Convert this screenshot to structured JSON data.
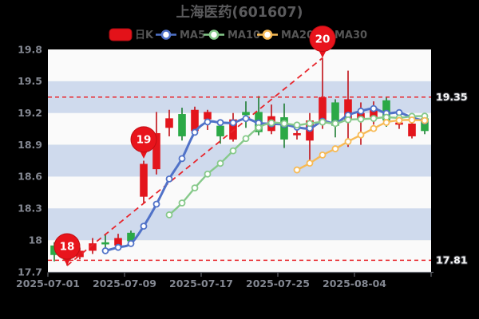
{
  "title": "上海医药(601607)",
  "legend": {
    "items": [
      {
        "label": "日K",
        "type": "kbar",
        "color": "#e31219"
      },
      {
        "label": "MA5",
        "type": "ma",
        "color": "#5072c8"
      },
      {
        "label": "MA10",
        "type": "ma",
        "color": "#86c98a"
      },
      {
        "label": "MA20",
        "type": "ma",
        "color": "#f7ba55"
      },
      {
        "label": "MA30",
        "type": "ma",
        "color": "#f0908f"
      }
    ]
  },
  "colors": {
    "background": "#000000",
    "stripe_light": "#fafafa",
    "stripe_blue": "#cfdaed",
    "up_body": "#e3151c",
    "up_wick": "#c11017",
    "down_body": "#2ba946",
    "down_wick": "#1d7c33",
    "dashed_line": "#e8262c",
    "badge": "#e8141c",
    "axis": "#63666d",
    "tick_label": "#848892",
    "title_text": "#5a5a5c",
    "legend_text": "#565656",
    "markline_label_fill": "#f8f8f8",
    "markline_label_stroke": "#36383d"
  },
  "chart_data": {
    "type": "candlestick",
    "title": "上海医药(601607)",
    "ohlc_columns": [
      "open",
      "close",
      "low",
      "high"
    ],
    "dates": [
      "2025-07-01",
      "2025-07-02",
      "2025-07-03",
      "2025-07-04",
      "2025-07-07",
      "2025-07-08",
      "2025-07-09",
      "2025-07-10",
      "2025-07-11",
      "2025-07-14",
      "2025-07-15",
      "2025-07-16",
      "2025-07-17",
      "2025-07-18",
      "2025-07-21",
      "2025-07-22",
      "2025-07-23",
      "2025-07-24",
      "2025-07-25",
      "2025-07-28",
      "2025-07-29",
      "2025-07-30",
      "2025-07-31",
      "2025-08-01",
      "2025-08-04",
      "2025-08-05",
      "2025-08-06",
      "2025-08-07",
      "2025-08-08",
      "2025-08-11"
    ],
    "ohlc": [
      [
        17.95,
        17.86,
        17.8,
        17.98
      ],
      [
        17.86,
        17.81,
        17.76,
        17.89
      ],
      [
        17.84,
        17.9,
        17.82,
        17.93
      ],
      [
        17.9,
        17.97,
        17.87,
        18.02
      ],
      [
        17.98,
        17.96,
        17.93,
        18.06
      ],
      [
        17.95,
        18.02,
        17.93,
        18.06
      ],
      [
        18.07,
        17.99,
        17.96,
        18.09
      ],
      [
        18.41,
        18.72,
        18.35,
        18.75
      ],
      [
        18.67,
        19.01,
        18.62,
        19.21
      ],
      [
        19.06,
        19.15,
        18.98,
        19.23
      ],
      [
        19.19,
        18.98,
        18.94,
        19.25
      ],
      [
        19.03,
        19.23,
        19.0,
        19.26
      ],
      [
        19.14,
        19.21,
        19.04,
        19.23
      ],
      [
        19.08,
        18.98,
        18.91,
        19.12
      ],
      [
        18.95,
        19.14,
        18.93,
        19.2
      ],
      [
        19.21,
        19.18,
        19.06,
        19.31
      ],
      [
        19.21,
        19.02,
        18.99,
        19.36
      ],
      [
        19.03,
        19.17,
        19.0,
        19.28
      ],
      [
        19.16,
        18.95,
        18.87,
        19.29
      ],
      [
        18.99,
        19.01,
        18.95,
        19.06
      ],
      [
        18.94,
        19.13,
        18.75,
        19.2
      ],
      [
        19.1,
        19.35,
        19.05,
        19.72
      ],
      [
        19.3,
        19.08,
        18.97,
        19.33
      ],
      [
        19.13,
        19.33,
        18.88,
        19.6
      ],
      [
        19.14,
        19.2,
        18.9,
        19.3
      ],
      [
        19.16,
        19.25,
        19.09,
        19.31
      ],
      [
        19.32,
        19.13,
        19.07,
        19.35
      ],
      [
        19.09,
        19.11,
        19.05,
        19.16
      ],
      [
        18.98,
        19.1,
        18.96,
        19.14
      ],
      [
        19.15,
        19.03,
        19.0,
        19.18
      ]
    ],
    "ma_series": [
      {
        "name": "MA5",
        "window": 5,
        "color": "#5072c8",
        "draw": true
      },
      {
        "name": "MA10",
        "window": 10,
        "color": "#86c98a",
        "draw": true
      },
      {
        "name": "MA20",
        "window": 20,
        "color": "#f7ba55",
        "draw": true
      },
      {
        "name": "MA30",
        "window": 30,
        "color": "#f0908f",
        "draw": false
      }
    ],
    "x_axis": {
      "tick_labels": [
        "2025-07-01",
        "2025-07-09",
        "2025-07-17",
        "2025-07-25",
        "2025-08-04"
      ],
      "tick_day_indices": [
        0,
        6,
        12,
        18,
        24
      ],
      "ticks_every_days": 6
    },
    "y_axis": {
      "ticks": [
        "19.8",
        "19.5",
        "19.2",
        "18.9",
        "18.6",
        "18.3",
        "18",
        "17.7"
      ],
      "tick_values": [
        19.8,
        19.5,
        19.2,
        18.9,
        18.6,
        18.3,
        18.0,
        17.7
      ]
    },
    "ylim": [
      17.7,
      19.8
    ],
    "marklines": [
      {
        "value": 19.35,
        "label": "19.35"
      },
      {
        "value": 17.81,
        "label": "17.81"
      }
    ],
    "trend_line": {
      "from": {
        "index": 1,
        "value": 17.76
      },
      "to": {
        "index": 21,
        "value": 19.72
      }
    },
    "badges": [
      {
        "label": "18",
        "index": 1,
        "value": 17.76
      },
      {
        "label": "19",
        "index": 7,
        "value": 18.77
      },
      {
        "label": "20",
        "index": 21,
        "value": 19.72
      }
    ]
  }
}
